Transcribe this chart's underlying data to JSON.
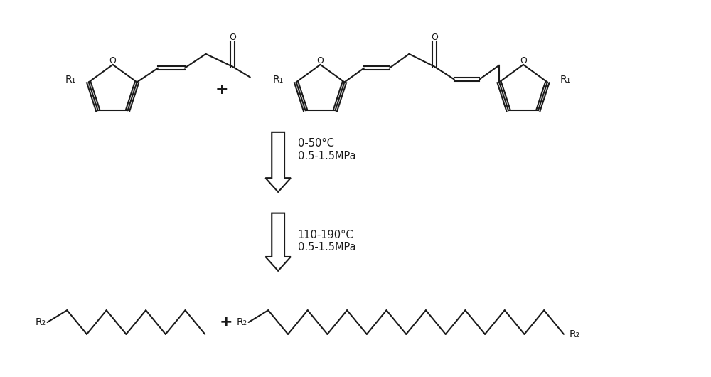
{
  "bg_color": "#ffffff",
  "line_color": "#1a1a1a",
  "text_color": "#1a1a1a",
  "arrow_label1": "0-50°C\n0.5-1.5MPa",
  "arrow_label2": "110-190°C\n0.5-1.5MPa",
  "R1_label": "R₁",
  "R2_label": "R₂",
  "figsize": [
    10.0,
    5.3
  ],
  "dpi": 100
}
